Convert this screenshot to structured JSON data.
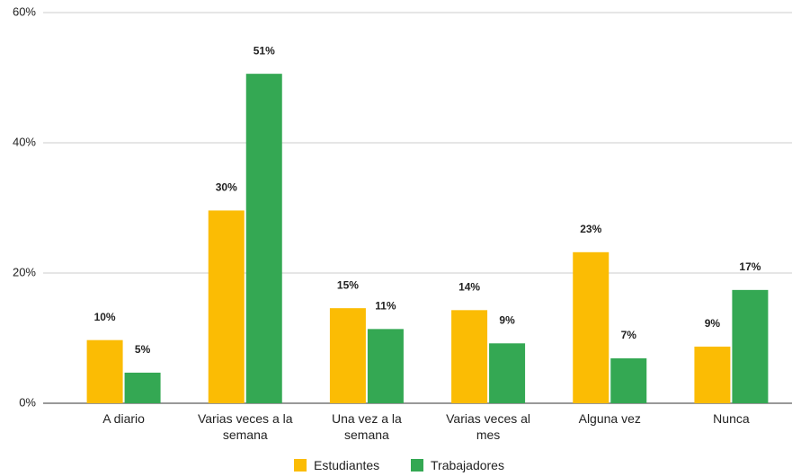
{
  "chart_data": {
    "type": "bar",
    "categories": [
      "A diario",
      "Varias veces a la semana",
      "Una vez a la semana",
      "Varias veces al mes",
      "Alguna vez",
      "Nunca"
    ],
    "series": [
      {
        "name": "Estudiantes",
        "color": "#fbbc04",
        "values": [
          9.7,
          29.6,
          14.6,
          14.3,
          23.2,
          8.7
        ],
        "value_labels": [
          "10%",
          "30%",
          "15%",
          "14%",
          "23%",
          "9%"
        ]
      },
      {
        "name": "Trabajadores",
        "color": "#34a853",
        "values": [
          4.7,
          50.6,
          11.4,
          9.2,
          6.9,
          17.4
        ],
        "value_labels": [
          "5%",
          "51%",
          "11%",
          "9%",
          "7%",
          "17%"
        ]
      }
    ],
    "ylim": [
      0,
      60
    ],
    "yticks": [
      {
        "value": 0,
        "label": "0%"
      },
      {
        "value": 20,
        "label": "20%"
      },
      {
        "value": 40,
        "label": "40%"
      },
      {
        "value": 60,
        "label": "60%"
      }
    ],
    "grid": true,
    "legend": "bottom"
  }
}
